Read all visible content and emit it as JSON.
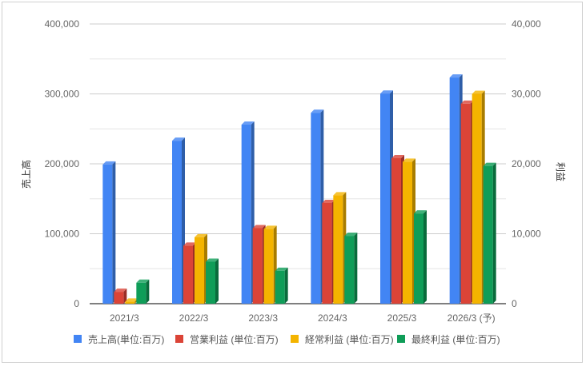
{
  "chart_data": {
    "type": "bar",
    "style": "3d-clustered-column",
    "categories": [
      "2021/3",
      "2022/3",
      "2023/3",
      "2024/3",
      "2025/3",
      "2026/3 (予)"
    ],
    "left_axis": {
      "title": "売上高",
      "ylim": [
        0,
        400000
      ],
      "ticks": [
        "0",
        "100,000",
        "200,000",
        "300,000",
        "400,000"
      ]
    },
    "right_axis": {
      "title": "利益",
      "ylim": [
        0,
        40000
      ],
      "ticks": [
        "0",
        "10,000",
        "20,000",
        "30,000",
        "40,000"
      ]
    },
    "grid": true,
    "legend_position": "bottom",
    "series": [
      {
        "name": "売上高(単位:百万)",
        "axis": "left",
        "color": "#4285f4",
        "side": "#2f5ea8",
        "values": [
          199000,
          233000,
          256000,
          273000,
          300500,
          323400
        ]
      },
      {
        "name": "営業利益 (単位:百万)",
        "axis": "right",
        "color": "#db4437",
        "side": "#9b2e26",
        "values": [
          1700,
          8300,
          10800,
          14400,
          20800,
          28600
        ]
      },
      {
        "name": "経常利益 (単位:百万)",
        "axis": "right",
        "color": "#f4b400",
        "side": "#a87c00",
        "values": [
          300,
          9500,
          10700,
          15500,
          20300,
          30000
        ]
      },
      {
        "name": "最終利益 (単位:百万)",
        "axis": "right",
        "color": "#0f9d58",
        "side": "#0a6b3c",
        "values": [
          3000,
          6000,
          4700,
          9700,
          12900,
          19700
        ]
      }
    ]
  }
}
